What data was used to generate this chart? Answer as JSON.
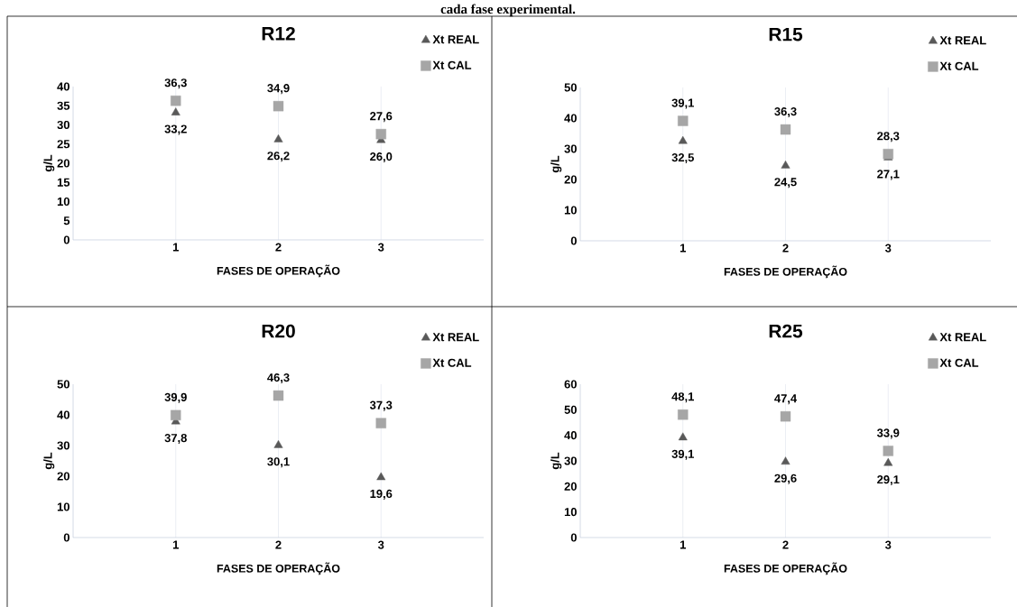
{
  "chart_data": [
    {
      "type": "scatter",
      "title": "R12",
      "xlabel": "FASES DE OPERAÇÃO",
      "ylabel": "g/L",
      "annotations": [
        "cada fase experimental."
      ],
      "x": [
        1,
        2,
        3
      ],
      "xlim": [
        0,
        4
      ],
      "xticks": [
        1,
        2,
        3
      ],
      "ylim": [
        0,
        40
      ],
      "yticks": [
        0,
        5,
        10,
        15,
        20,
        25,
        30,
        35,
        40
      ],
      "grid": "x",
      "legend": "top right",
      "series": [
        {
          "name": "Xt REAL",
          "color": "#595959",
          "marker": "triangle",
          "values": [
            33.2,
            26.2,
            26.0
          ],
          "value_labels": [
            "33,2",
            "26,2",
            "26,0"
          ]
        },
        {
          "name": "Xt CAL",
          "color": "#a6a6a6",
          "marker": "square",
          "values": [
            36.3,
            34.9,
            27.6
          ],
          "value_labels": [
            "36,3",
            "34,9",
            "27,6"
          ]
        }
      ]
    },
    {
      "type": "scatter",
      "title": "R15",
      "xlabel": "FASES DE OPERAÇÃO",
      "ylabel": "g/L",
      "x": [
        1,
        2,
        3
      ],
      "xlim": [
        0,
        4
      ],
      "xticks": [
        1,
        2,
        3
      ],
      "ylim": [
        0,
        50
      ],
      "yticks": [
        0,
        10,
        20,
        30,
        40,
        50
      ],
      "grid": "x",
      "legend": "top right",
      "series": [
        {
          "name": "Xt REAL",
          "color": "#595959",
          "marker": "triangle",
          "values": [
            32.5,
            24.5,
            27.1
          ],
          "value_labels": [
            "32,5",
            "24,5",
            "27,1"
          ]
        },
        {
          "name": "Xt CAL",
          "color": "#a6a6a6",
          "marker": "square",
          "values": [
            39.1,
            36.3,
            28.3
          ],
          "value_labels": [
            "39,1",
            "36,3",
            "28,3"
          ]
        }
      ]
    },
    {
      "type": "scatter",
      "title": "R20",
      "xlabel": "FASES DE OPERAÇÃO",
      "ylabel": "g/L",
      "x": [
        1,
        2,
        3
      ],
      "xlim": [
        0,
        4
      ],
      "xticks": [
        1,
        2,
        3
      ],
      "ylim": [
        0,
        50
      ],
      "yticks": [
        0,
        10,
        20,
        30,
        40,
        50
      ],
      "grid": "x",
      "legend": "top right",
      "series": [
        {
          "name": "Xt REAL",
          "color": "#595959",
          "marker": "triangle",
          "values": [
            37.8,
            30.1,
            19.6
          ],
          "value_labels": [
            "37,8",
            "30,1",
            "19,6"
          ]
        },
        {
          "name": "Xt CAL",
          "color": "#a6a6a6",
          "marker": "square",
          "values": [
            39.9,
            46.3,
            37.3
          ],
          "value_labels": [
            "39,9",
            "46,3",
            "37,3"
          ]
        }
      ]
    },
    {
      "type": "scatter",
      "title": "R25",
      "xlabel": "FASES DE OPERAÇÃO",
      "ylabel": "g/L",
      "x": [
        1,
        2,
        3
      ],
      "xlim": [
        0,
        4
      ],
      "xticks": [
        1,
        2,
        3
      ],
      "ylim": [
        0,
        60
      ],
      "yticks": [
        0,
        10,
        20,
        30,
        40,
        50,
        60
      ],
      "grid": "x",
      "legend": "top right",
      "series": [
        {
          "name": "Xt REAL",
          "color": "#595959",
          "marker": "triangle",
          "values": [
            39.1,
            29.6,
            29.1
          ],
          "value_labels": [
            "39,1",
            "29,6",
            "29,1"
          ]
        },
        {
          "name": "Xt CAL",
          "color": "#a6a6a6",
          "marker": "square",
          "values": [
            48.1,
            47.4,
            33.9
          ],
          "value_labels": [
            "48,1",
            "47,4",
            "33,9"
          ]
        }
      ]
    }
  ]
}
